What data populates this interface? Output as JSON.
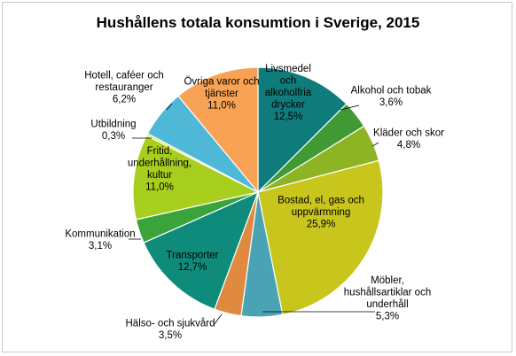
{
  "chart_data": {
    "type": "pie",
    "title": "Hushållens totala konsumtion i Sverige, 2015",
    "slices": [
      {
        "label": "Livsmedel och alkoholfria drycker",
        "label_lines": [
          "Livsmedel",
          "och",
          "alkoholfria",
          "drycker",
          "12,5%"
        ],
        "value": 12.5,
        "color": "#0f7b7b"
      },
      {
        "label": "Alkohol och tobak",
        "label_lines": [
          "Alkohol och tobak",
          "3,6%"
        ],
        "value": 3.6,
        "color": "#3f9a33"
      },
      {
        "label": "Kläder och skor",
        "label_lines": [
          "Kläder och skor",
          "4,8%"
        ],
        "value": 4.8,
        "color": "#8db523"
      },
      {
        "label": "Bostad, el, gas och uppvärmning",
        "label_lines": [
          "Bostad, el, gas och",
          "uppvärmning",
          "25,9%"
        ],
        "value": 25.9,
        "color": "#c8c51d"
      },
      {
        "label": "Möbler, hushållsartiklar och underhåll",
        "label_lines": [
          "Möbler,",
          "hushållsartiklar och",
          "underhåll",
          "5,3%"
        ],
        "value": 5.3,
        "color": "#4aa3b5"
      },
      {
        "label": "Hälso- och sjukvård",
        "label_lines": [
          "Hälso- och sjukvård",
          "3,5%"
        ],
        "value": 3.5,
        "color": "#e08a3f"
      },
      {
        "label": "Transporter",
        "label_lines": [
          "Transporter",
          "12,7%"
        ],
        "value": 12.7,
        "color": "#0f8b7b"
      },
      {
        "label": "Kommunikation",
        "label_lines": [
          "Kommunikation",
          "3,1%"
        ],
        "value": 3.1,
        "color": "#3aa33a"
      },
      {
        "label": "Fritid, underhållning, kultur",
        "label_lines": [
          "Fritid,",
          "underhållning,",
          "kultur",
          "11,0%"
        ],
        "value": 11.0,
        "color": "#a8cf1d"
      },
      {
        "label": "Utbildning",
        "label_lines": [
          "Utbildning",
          "0,3%"
        ],
        "value": 0.3,
        "color": "#dde83a"
      },
      {
        "label": "Hotell, caféer och restauranger",
        "label_lines": [
          "Hotell, caféer och",
          "restauranger",
          "6,2%"
        ],
        "value": 6.2,
        "color": "#4eb8d6"
      },
      {
        "label": "Övriga varor och tjänster",
        "label_lines": [
          "Övriga varor och",
          "tjänster",
          "11,0%"
        ],
        "value": 11.0,
        "color": "#f7a254"
      }
    ]
  }
}
